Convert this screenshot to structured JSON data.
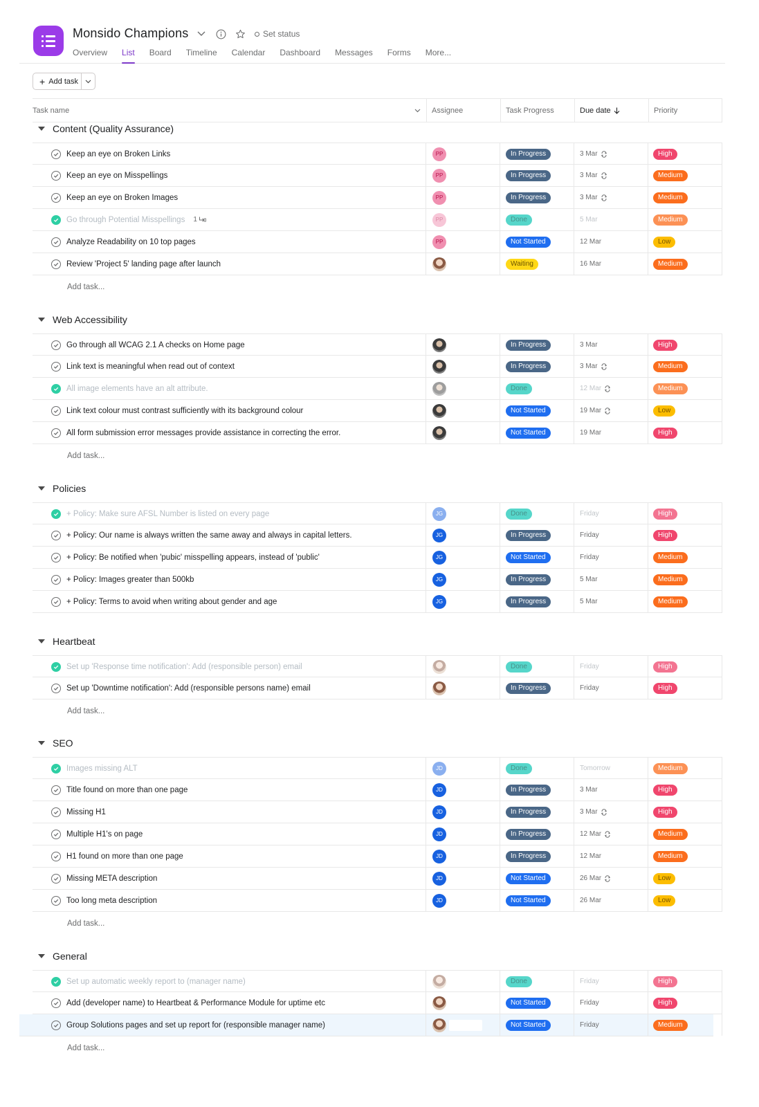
{
  "project": {
    "title": "Monsido Champions",
    "set_status": "Set status",
    "icon": "list-icon",
    "color": "#9b3be8"
  },
  "tabs": [
    "Overview",
    "List",
    "Board",
    "Timeline",
    "Calendar",
    "Dashboard",
    "Messages",
    "Forms",
    "More..."
  ],
  "active_tab": "List",
  "toolbar": {
    "add_task_label": "Add task"
  },
  "columns": {
    "task_name": "Task name",
    "assignee": "Assignee",
    "progress": "Task Progress",
    "due": "Due date",
    "priority": "Priority"
  },
  "add_task_placeholder": "Add task...",
  "sections": [
    {
      "title": "Content (Quality Assurance)",
      "tasks": [
        {
          "name": "Keep an eye on Broken Links",
          "done": false,
          "assignee": "PP",
          "avatar": "pp",
          "progress": "In Progress",
          "due": "3 Mar",
          "recurring": true,
          "priority": "High"
        },
        {
          "name": "Keep an eye on Misspellings",
          "done": false,
          "assignee": "PP",
          "avatar": "pp",
          "progress": "In Progress",
          "due": "3 Mar",
          "recurring": true,
          "priority": "Medium"
        },
        {
          "name": "Keep an eye on Broken Images",
          "done": false,
          "assignee": "PP",
          "avatar": "pp",
          "progress": "In Progress",
          "due": "3 Mar",
          "recurring": true,
          "priority": "Medium"
        },
        {
          "name": "Go through Potential Misspellings",
          "done": true,
          "subtasks": "1",
          "assignee": "PP",
          "avatar": "pp",
          "progress": "Done",
          "due": "5 Mar",
          "recurring": false,
          "priority": "Medium"
        },
        {
          "name": "Analyze Readability on 10 top pages",
          "done": false,
          "assignee": "PP",
          "avatar": "pp",
          "progress": "Not Started",
          "due": "12 Mar",
          "recurring": false,
          "priority": "Low"
        },
        {
          "name": "Review 'Project 5' landing page after launch",
          "done": false,
          "assignee": "",
          "avatar": "photo-f",
          "progress": "Waiting",
          "due": "16 Mar",
          "recurring": false,
          "priority": "Medium"
        }
      ]
    },
    {
      "title": "Web Accessibility",
      "tasks": [
        {
          "name": "Go through all WCAG 2.1 A checks on Home page",
          "done": false,
          "assignee": "",
          "avatar": "photo-m",
          "progress": "In Progress",
          "due": "3 Mar",
          "recurring": false,
          "priority": "High"
        },
        {
          "name": "Link text is meaningful when read out of context",
          "done": false,
          "assignee": "",
          "avatar": "photo-m",
          "progress": "In Progress",
          "due": "3 Mar",
          "recurring": true,
          "priority": "Medium"
        },
        {
          "name": "All image elements have an alt attribute.",
          "done": true,
          "assignee": "",
          "avatar": "photo-m",
          "progress": "Done",
          "due": "12 Mar",
          "recurring": true,
          "priority": "Medium"
        },
        {
          "name": "Link text colour must contrast sufficiently with its background colour",
          "done": false,
          "assignee": "",
          "avatar": "photo-m",
          "progress": "Not Started",
          "due": "19 Mar",
          "recurring": true,
          "priority": "Low"
        },
        {
          "name": "All form submission error messages provide assistance in correcting the error.",
          "done": false,
          "assignee": "",
          "avatar": "photo-m",
          "progress": "Not Started",
          "due": "19 Mar",
          "recurring": false,
          "priority": "High"
        }
      ]
    },
    {
      "title": "Policies",
      "tasks": [
        {
          "name": "+ Policy: Make sure AFSL Number is listed on every page",
          "done": true,
          "assignee": "JG",
          "avatar": "jg",
          "progress": "Done",
          "due": "Friday",
          "recurring": false,
          "priority": "High"
        },
        {
          "name": "+ Policy: Our name is always written the same away and always in capital letters.",
          "done": false,
          "assignee": "JG",
          "avatar": "jg",
          "progress": "In Progress",
          "due": "Friday",
          "recurring": false,
          "priority": "High"
        },
        {
          "name": "+ Policy: Be notified when 'pubic' misspelling appears, instead of 'public'",
          "done": false,
          "assignee": "JG",
          "avatar": "jg",
          "progress": "Not Started",
          "due": "Friday",
          "recurring": false,
          "priority": "Medium"
        },
        {
          "name": "+ Policy: Images greater than 500kb",
          "done": false,
          "assignee": "JG",
          "avatar": "jg",
          "progress": "In Progress",
          "due": "5 Mar",
          "recurring": false,
          "priority": "Medium"
        },
        {
          "name": "+ Policy: Terms to avoid when writing about gender and age",
          "done": false,
          "assignee": "JG",
          "avatar": "jg",
          "progress": "In Progress",
          "due": "5 Mar",
          "recurring": false,
          "priority": "Medium"
        }
      ]
    },
    {
      "title": "Heartbeat",
      "tasks": [
        {
          "name": "Set up 'Response time notification': Add (responsible person) email",
          "done": true,
          "assignee": "",
          "avatar": "photo-f",
          "progress": "Done",
          "due": "Friday",
          "recurring": false,
          "priority": "High"
        },
        {
          "name": "Set up 'Downtime notification': Add (responsible persons name) email",
          "done": false,
          "assignee": "",
          "avatar": "photo-f",
          "progress": "In Progress",
          "due": "Friday",
          "recurring": false,
          "priority": "High"
        }
      ]
    },
    {
      "title": "SEO",
      "tasks": [
        {
          "name": "Images missing ALT",
          "done": true,
          "assignee": "JD",
          "avatar": "jd",
          "progress": "Done",
          "due": "Tomorrow",
          "recurring": false,
          "priority": "Medium"
        },
        {
          "name": "Title found on more than one page",
          "done": false,
          "assignee": "JD",
          "avatar": "jd",
          "progress": "In Progress",
          "due": "3 Mar",
          "recurring": false,
          "priority": "High"
        },
        {
          "name": "Missing H1",
          "done": false,
          "assignee": "JD",
          "avatar": "jd",
          "progress": "In Progress",
          "due": "3 Mar",
          "recurring": true,
          "priority": "High"
        },
        {
          "name": "Multiple H1's on page",
          "done": false,
          "assignee": "JD",
          "avatar": "jd",
          "progress": "In Progress",
          "due": "12 Mar",
          "recurring": true,
          "priority": "Medium"
        },
        {
          "name": "H1 found on more than one page",
          "done": false,
          "assignee": "JD",
          "avatar": "jd",
          "progress": "In Progress",
          "due": "12 Mar",
          "recurring": false,
          "priority": "Medium"
        },
        {
          "name": "Missing META description",
          "done": false,
          "assignee": "JD",
          "avatar": "jd",
          "progress": "Not Started",
          "due": "26 Mar",
          "recurring": true,
          "priority": "Low"
        },
        {
          "name": "Too long meta description",
          "done": false,
          "assignee": "JD",
          "avatar": "jd",
          "progress": "Not Started",
          "due": "26 Mar",
          "recurring": false,
          "priority": "Low"
        }
      ]
    },
    {
      "title": "General",
      "tasks": [
        {
          "name": "Set up automatic weekly report to (manager name)",
          "done": true,
          "assignee": "",
          "avatar": "photo-f",
          "progress": "Done",
          "due": "Friday",
          "recurring": false,
          "priority": "High"
        },
        {
          "name": "Add (developer name) to Heartbeat & Performance Module for uptime etc",
          "done": false,
          "assignee": "",
          "avatar": "photo-f",
          "progress": "Not Started",
          "due": "Friday",
          "recurring": false,
          "priority": "High"
        },
        {
          "name": "Group Solutions pages and set up report for (responsible manager name)",
          "done": false,
          "assignee": "",
          "avatar": "photo-f",
          "progress": "Not Started",
          "due": "Friday",
          "recurring": false,
          "priority": "Medium",
          "highlighted": true
        }
      ]
    }
  ]
}
